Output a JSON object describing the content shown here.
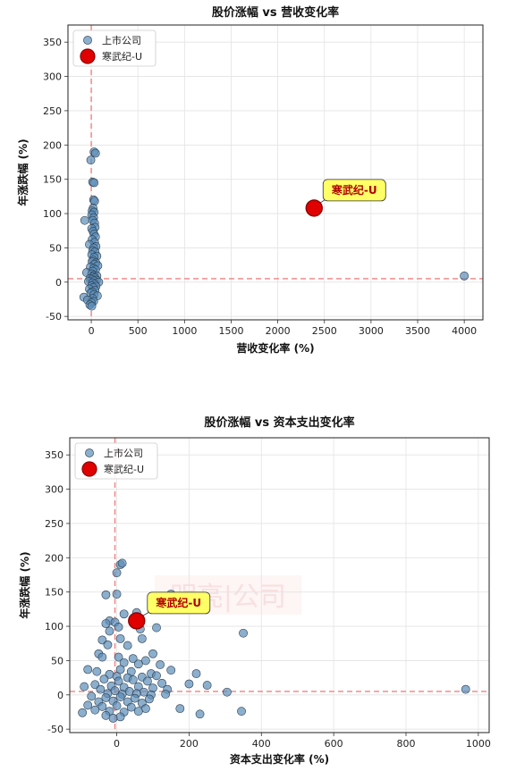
{
  "charts": [
    {
      "type": "scatter",
      "title": "股价涨幅 vs 营收变化率",
      "xlabel": "营收变化率 (%)",
      "ylabel": "年涨跌幅 (%)",
      "xlim": [
        -250,
        4200
      ],
      "ylim": [
        -55,
        375
      ],
      "xticks": [
        0,
        500,
        1000,
        1500,
        2000,
        2500,
        3000,
        3500,
        4000
      ],
      "yticks": [
        -50,
        0,
        50,
        100,
        150,
        200,
        250,
        300,
        350
      ],
      "grid": true,
      "legend_placement": "top-left",
      "ref_x": 0,
      "ref_y": 5,
      "series": [
        {
          "name": "上市公司",
          "color": "#5b8db8",
          "points": [
            [
              -70,
              90
            ],
            [
              -5,
              178
            ],
            [
              30,
              190
            ],
            [
              45,
              188
            ],
            [
              15,
              146
            ],
            [
              30,
              145
            ],
            [
              25,
              120
            ],
            [
              35,
              118
            ],
            [
              20,
              108
            ],
            [
              10,
              104
            ],
            [
              30,
              102
            ],
            [
              5,
              98
            ],
            [
              25,
              94
            ],
            [
              15,
              90
            ],
            [
              35,
              86
            ],
            [
              40,
              80
            ],
            [
              5,
              78
            ],
            [
              20,
              74
            ],
            [
              30,
              70
            ],
            [
              45,
              66
            ],
            [
              10,
              62
            ],
            [
              35,
              58
            ],
            [
              -20,
              55
            ],
            [
              50,
              52
            ],
            [
              25,
              50
            ],
            [
              15,
              46
            ],
            [
              40,
              44
            ],
            [
              5,
              40
            ],
            [
              60,
              38
            ],
            [
              30,
              36
            ],
            [
              20,
              32
            ],
            [
              10,
              30
            ],
            [
              50,
              28
            ],
            [
              35,
              26
            ],
            [
              70,
              24
            ],
            [
              -10,
              22
            ],
            [
              25,
              20
            ],
            [
              45,
              18
            ],
            [
              15,
              16
            ],
            [
              -50,
              14
            ],
            [
              5,
              12
            ],
            [
              30,
              10
            ],
            [
              60,
              9
            ],
            [
              20,
              8
            ],
            [
              40,
              6
            ],
            [
              -15,
              5
            ],
            [
              10,
              4
            ],
            [
              55,
              3
            ],
            [
              25,
              2
            ],
            [
              -30,
              1
            ],
            [
              80,
              0
            ],
            [
              15,
              -1
            ],
            [
              35,
              -3
            ],
            [
              5,
              -5
            ],
            [
              50,
              -6
            ],
            [
              20,
              -8
            ],
            [
              -20,
              -10
            ],
            [
              40,
              -12
            ],
            [
              10,
              -14
            ],
            [
              -5,
              -16
            ],
            [
              30,
              -18
            ],
            [
              65,
              -20
            ],
            [
              -80,
              -22
            ],
            [
              15,
              -24
            ],
            [
              -40,
              -26
            ],
            [
              25,
              -28
            ],
            [
              0,
              -30
            ],
            [
              -15,
              -33
            ],
            [
              5,
              -35
            ],
            [
              4000,
              9
            ]
          ]
        },
        {
          "name": "寒武纪-U",
          "color": "#e00000",
          "points": [
            [
              2390,
              108
            ]
          ],
          "label": "寒武纪-U"
        }
      ]
    },
    {
      "type": "scatter",
      "title": "股价涨幅 vs 资本支出变化率",
      "xlabel": "资本支出变化率 (%)",
      "ylabel": "年涨跌幅 (%)",
      "xlim": [
        -130,
        1030
      ],
      "ylim": [
        -55,
        375
      ],
      "xticks": [
        0,
        200,
        400,
        600,
        800,
        1000
      ],
      "yticks": [
        -50,
        0,
        50,
        100,
        150,
        200,
        250,
        300,
        350
      ],
      "grid": true,
      "legend_placement": "top-left",
      "ref_x": -5,
      "ref_y": 5,
      "watermark": "明亮|公司",
      "series": [
        {
          "name": "上市公司",
          "color": "#5b8db8",
          "points": [
            [
              10,
              190
            ],
            [
              15,
              192
            ],
            [
              0,
              178
            ],
            [
              -30,
              146
            ],
            [
              0,
              147
            ],
            [
              150,
              147
            ],
            [
              -20,
              108
            ],
            [
              -5,
              106
            ],
            [
              20,
              118
            ],
            [
              55,
              120
            ],
            [
              -30,
              104
            ],
            [
              5,
              99
            ],
            [
              65,
              96
            ],
            [
              110,
              98
            ],
            [
              -20,
              93
            ],
            [
              -40,
              80
            ],
            [
              10,
              82
            ],
            [
              70,
              82
            ],
            [
              350,
              90
            ],
            [
              -25,
              73
            ],
            [
              30,
              72
            ],
            [
              100,
              60
            ],
            [
              -50,
              60
            ],
            [
              -40,
              55
            ],
            [
              5,
              55
            ],
            [
              45,
              53
            ],
            [
              80,
              50
            ],
            [
              20,
              47
            ],
            [
              60,
              45
            ],
            [
              120,
              44
            ],
            [
              -80,
              37
            ],
            [
              -55,
              34
            ],
            [
              10,
              37
            ],
            [
              40,
              34
            ],
            [
              95,
              31
            ],
            [
              150,
              36
            ],
            [
              220,
              31
            ],
            [
              -20,
              30
            ],
            [
              0,
              27
            ],
            [
              30,
              25
            ],
            [
              70,
              26
            ],
            [
              110,
              28
            ],
            [
              -35,
              23
            ],
            [
              5,
              20
            ],
            [
              45,
              22
            ],
            [
              85,
              20
            ],
            [
              125,
              17
            ],
            [
              200,
              16
            ],
            [
              250,
              14
            ],
            [
              -60,
              15
            ],
            [
              -15,
              13
            ],
            [
              20,
              11
            ],
            [
              60,
              12
            ],
            [
              100,
              10
            ],
            [
              140,
              8
            ],
            [
              -90,
              12
            ],
            [
              -45,
              8
            ],
            [
              -5,
              6
            ],
            [
              35,
              5
            ],
            [
              75,
              4
            ],
            [
              -25,
              2
            ],
            [
              15,
              1
            ],
            [
              55,
              2
            ],
            [
              95,
              0
            ],
            [
              135,
              1
            ],
            [
              -70,
              -2
            ],
            [
              -30,
              -4
            ],
            [
              10,
              -3
            ],
            [
              50,
              -5
            ],
            [
              90,
              -6
            ],
            [
              -50,
              -10
            ],
            [
              -10,
              -9
            ],
            [
              30,
              -10
            ],
            [
              70,
              -12
            ],
            [
              -80,
              -15
            ],
            [
              -40,
              -17
            ],
            [
              0,
              -16
            ],
            [
              40,
              -18
            ],
            [
              80,
              -20
            ],
            [
              -60,
              -22
            ],
            [
              -20,
              -24
            ],
            [
              20,
              -25
            ],
            [
              60,
              -24
            ],
            [
              -95,
              -26
            ],
            [
              -30,
              -30
            ],
            [
              10,
              -32
            ],
            [
              -10,
              -34
            ],
            [
              175,
              -20
            ],
            [
              230,
              -28
            ],
            [
              305,
              4
            ],
            [
              345,
              -24
            ],
            [
              965,
              8
            ]
          ]
        },
        {
          "name": "寒武纪-U",
          "color": "#e00000",
          "points": [
            [
              55,
              108
            ]
          ],
          "label": "寒武纪-U"
        }
      ]
    }
  ]
}
